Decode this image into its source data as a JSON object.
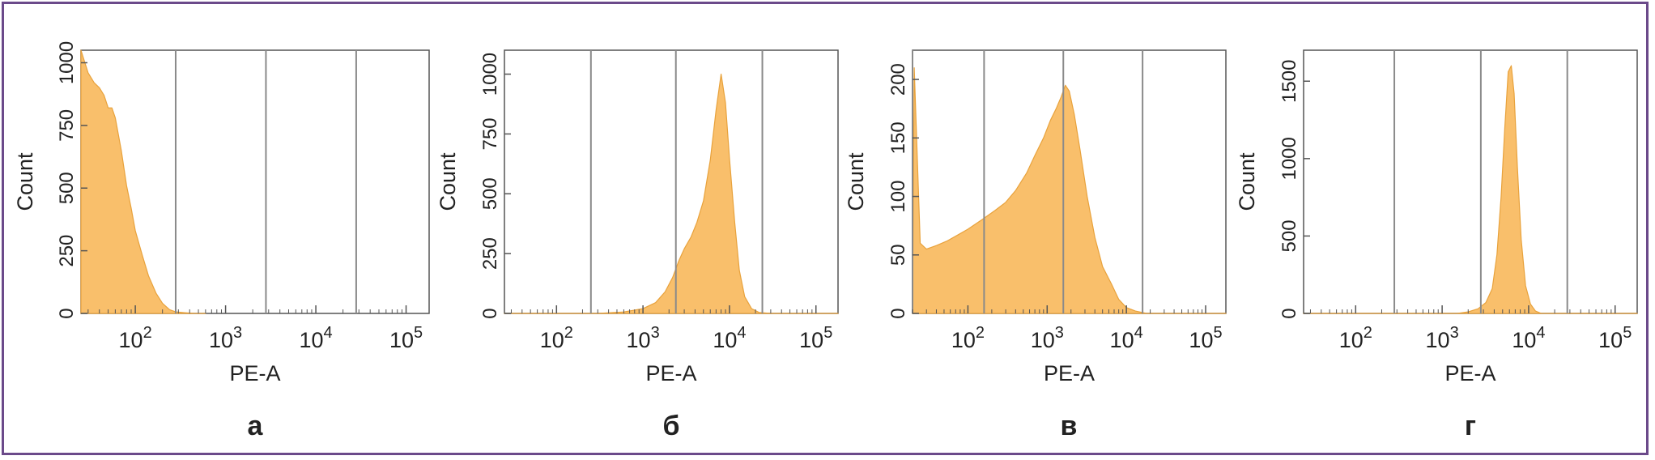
{
  "figure": {
    "colors": {
      "frame": "#6b4a8a",
      "fill": "#f9bf6b",
      "stroke": "#e8a23c",
      "grid": "#8a8a8a",
      "axis": "#555555"
    }
  },
  "chart_data": [
    {
      "type": "area",
      "panel_label": "а",
      "xlabel": "PE-A",
      "ylabel": "Count",
      "x_scale": "log",
      "xlim": [
        25,
        180000
      ],
      "ylim": [
        0,
        1050
      ],
      "x_ticks": [
        {
          "value": 100,
          "base": "10",
          "exp": "2"
        },
        {
          "value": 1000,
          "base": "10",
          "exp": "3"
        },
        {
          "value": 10000,
          "base": "10",
          "exp": "4"
        },
        {
          "value": 100000,
          "base": "10",
          "exp": "5"
        }
      ],
      "y_ticks": [
        0,
        250,
        500,
        750,
        1000
      ],
      "gates": [
        280,
        2800,
        28000
      ],
      "x": [
        25,
        30,
        35,
        40,
        45,
        50,
        55,
        60,
        70,
        80,
        90,
        100,
        120,
        140,
        170,
        200,
        240,
        280,
        350,
        450,
        600
      ],
      "y": [
        1050,
        960,
        920,
        900,
        870,
        820,
        820,
        780,
        650,
        510,
        420,
        330,
        230,
        150,
        80,
        40,
        15,
        6,
        3,
        0,
        0
      ]
    },
    {
      "type": "area",
      "panel_label": "б",
      "xlabel": "PE-A",
      "ylabel": "Count",
      "x_scale": "log",
      "xlim": [
        25,
        180000
      ],
      "ylim": [
        0,
        1100
      ],
      "x_ticks": [
        {
          "value": 100,
          "base": "10",
          "exp": "2"
        },
        {
          "value": 1000,
          "base": "10",
          "exp": "3"
        },
        {
          "value": 10000,
          "base": "10",
          "exp": "4"
        },
        {
          "value": 100000,
          "base": "10",
          "exp": "5"
        }
      ],
      "y_ticks": [
        0,
        250,
        500,
        750,
        1000
      ],
      "gates": [
        250,
        2400,
        24000
      ],
      "x": [
        25,
        300,
        600,
        1000,
        1400,
        1800,
        2200,
        2600,
        3000,
        3600,
        4200,
        5000,
        6000,
        7000,
        8000,
        9000,
        10000,
        11500,
        13000,
        15000,
        18000,
        22000,
        30000,
        180000
      ],
      "y": [
        0,
        0,
        6,
        20,
        45,
        90,
        150,
        220,
        270,
        320,
        380,
        470,
        640,
        850,
        1000,
        880,
        650,
        380,
        180,
        70,
        20,
        4,
        0,
        0
      ]
    },
    {
      "type": "area",
      "panel_label": "в",
      "xlabel": "PE-A",
      "ylabel": "Count",
      "x_scale": "log",
      "xlim": [
        20,
        180000
      ],
      "ylim": [
        0,
        225
      ],
      "x_ticks": [
        {
          "value": 100,
          "base": "10",
          "exp": "2"
        },
        {
          "value": 1000,
          "base": "10",
          "exp": "3"
        },
        {
          "value": 10000,
          "base": "10",
          "exp": "4"
        },
        {
          "value": 100000,
          "base": "10",
          "exp": "5"
        }
      ],
      "y_ticks": [
        0,
        50,
        100,
        150,
        200
      ],
      "gates": [
        20,
        160,
        1600,
        16000
      ],
      "x": [
        20,
        21,
        25,
        30,
        40,
        55,
        70,
        100,
        150,
        220,
        300,
        400,
        550,
        700,
        900,
        1100,
        1300,
        1500,
        1700,
        1900,
        2200,
        2600,
        3200,
        4000,
        5000,
        6500,
        8000,
        10000,
        13000,
        18000,
        30000,
        180000
      ],
      "y": [
        0,
        210,
        60,
        55,
        58,
        62,
        66,
        72,
        80,
        88,
        95,
        105,
        120,
        135,
        150,
        165,
        175,
        185,
        195,
        190,
        170,
        140,
        100,
        65,
        40,
        25,
        12,
        5,
        2,
        0,
        0,
        0
      ]
    },
    {
      "type": "area",
      "panel_label": "г",
      "xlabel": "PE-A",
      "ylabel": "Count",
      "x_scale": "log",
      "xlim": [
        25,
        180000
      ],
      "ylim": [
        0,
        1700
      ],
      "x_ticks": [
        {
          "value": 100,
          "base": "10",
          "exp": "2"
        },
        {
          "value": 1000,
          "base": "10",
          "exp": "3"
        },
        {
          "value": 10000,
          "base": "10",
          "exp": "4"
        },
        {
          "value": 100000,
          "base": "10",
          "exp": "5"
        }
      ],
      "y_ticks": [
        0,
        500,
        1000,
        1500
      ],
      "gates": [
        280,
        2800,
        28000
      ],
      "x": [
        25,
        1500,
        2000,
        2600,
        3200,
        3800,
        4300,
        4800,
        5300,
        5800,
        6300,
        6800,
        7400,
        8200,
        9200,
        10500,
        12000,
        14000,
        180000
      ],
      "y": [
        0,
        0,
        10,
        30,
        70,
        160,
        380,
        750,
        1200,
        1560,
        1600,
        1420,
        950,
        480,
        180,
        60,
        15,
        0,
        0
      ]
    }
  ]
}
